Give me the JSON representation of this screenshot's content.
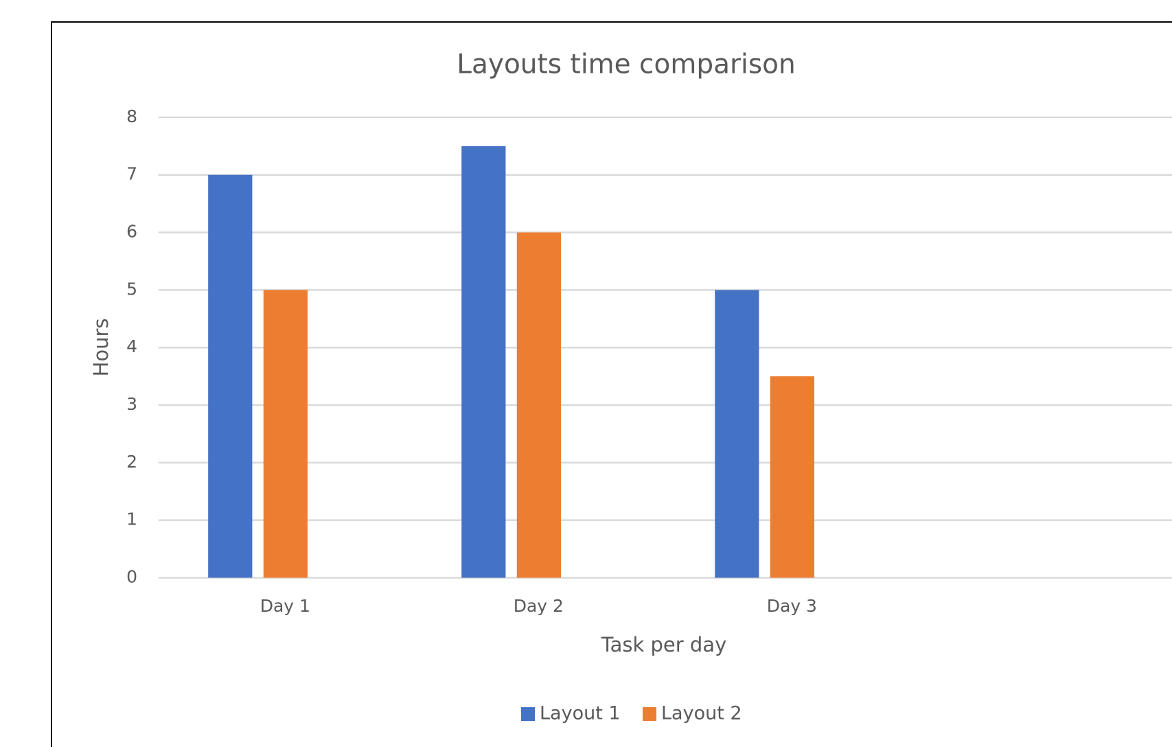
{
  "chart_data": {
    "type": "bar",
    "title": "Layouts time comparison",
    "x_label": "Task per day",
    "y_label": "Hours",
    "categories": [
      "Day 1",
      "Day 2",
      "Day 3",
      null
    ],
    "series": [
      {
        "name": "Layout 1",
        "color": "#4472c4",
        "values": [
          7,
          7.5,
          5,
          null
        ]
      },
      {
        "name": "Layout 2",
        "color": "#ed7d31",
        "values": [
          5,
          6,
          3.5,
          null
        ]
      }
    ],
    "ylim": [
      0,
      8
    ],
    "yticks": [
      0,
      1,
      2,
      3,
      4,
      5,
      6,
      7,
      8
    ],
    "grid": true,
    "legend": "bottom"
  }
}
